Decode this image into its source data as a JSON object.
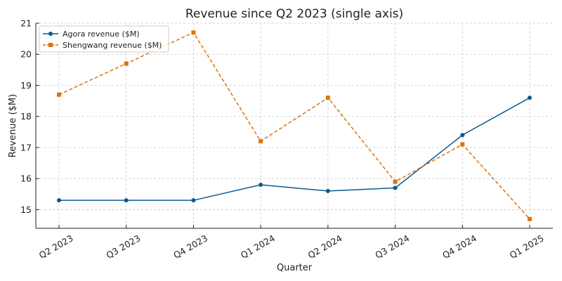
{
  "chart_data": {
    "type": "line",
    "title": "Revenue since Q2 2023 (single axis)",
    "xlabel": "Quarter",
    "ylabel": "Revenue ($M)",
    "categories": [
      "Q2 2023",
      "Q3 2023",
      "Q4 2023",
      "Q1 2024",
      "Q2 2024",
      "Q3 2024",
      "Q4 2024",
      "Q1 2025"
    ],
    "ylim": [
      14.4,
      21.0
    ],
    "yticks": [
      15,
      16,
      17,
      18,
      19,
      20,
      21
    ],
    "grid": true,
    "legend_position": "top-left",
    "series": [
      {
        "name": "Agora revenue ($M)",
        "values": [
          15.3,
          15.3,
          15.3,
          15.8,
          15.6,
          15.7,
          17.4,
          18.6
        ],
        "color": "#0b5a8e",
        "line_style": "solid",
        "marker": "circle"
      },
      {
        "name": "Shengwang revenue ($M)",
        "values": [
          18.7,
          19.7,
          20.7,
          17.2,
          18.6,
          15.9,
          17.1,
          14.7
        ],
        "color": "#d9730d",
        "line_style": "dashed",
        "marker": "square"
      }
    ]
  }
}
